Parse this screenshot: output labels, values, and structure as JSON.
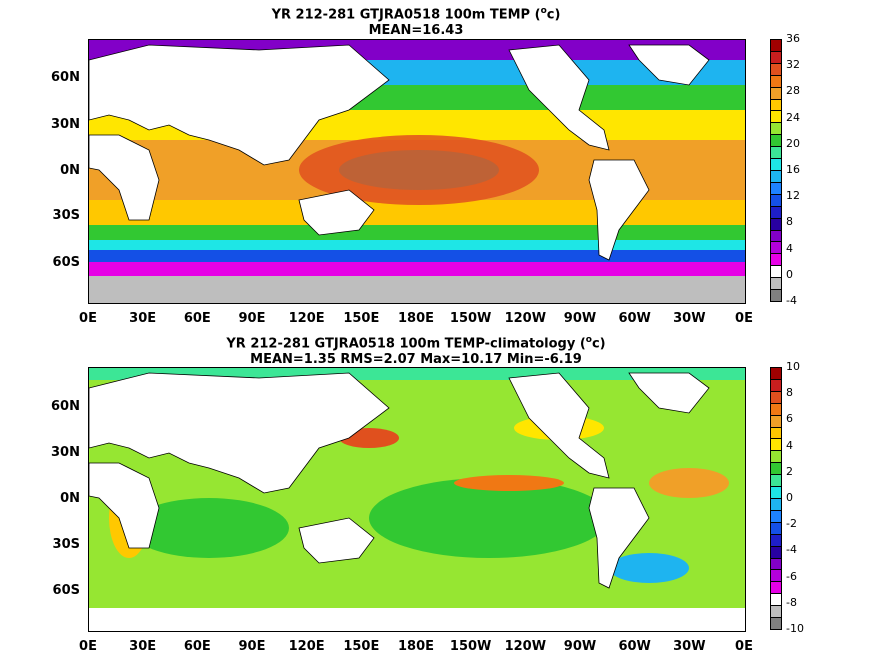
{
  "panels": [
    {
      "title_line1": "YR 212-281 GTJRA0518 100m TEMP (",
      "title_unit": "o",
      "title_line1_end": "c)",
      "title_line2": "MEAN=16.43",
      "colorbar_labels": [
        "36",
        "32",
        "28",
        "24",
        "20",
        "16",
        "12",
        "8",
        "4",
        "0",
        "-4"
      ],
      "colorbar_colors": [
        "#a00000",
        "#c81e1e",
        "#e0501e",
        "#f07814",
        "#f0a028",
        "#ffc800",
        "#ffe600",
        "#96e632",
        "#32c832",
        "#3ce696",
        "#1ee6e6",
        "#1eb4f0",
        "#1e82ff",
        "#1450e6",
        "#1e1ec8",
        "#2800a0",
        "#8200c8",
        "#b400dc",
        "#e600e6",
        "#ffffff",
        "#bebebe",
        "#808080"
      ]
    },
    {
      "title_line1": "YR 212-281 GTJRA0518 100m TEMP-climatology (",
      "title_unit": "o",
      "title_line1_end": "c)",
      "title_line2": "MEAN=1.35   RMS=2.07   Max=10.17   Min=-6.19",
      "colorbar_labels": [
        "10",
        "8",
        "6",
        "4",
        "2",
        "0",
        "-2",
        "-4",
        "-6",
        "-8",
        "-10"
      ],
      "colorbar_colors": [
        "#a00000",
        "#c81e1e",
        "#e0501e",
        "#f07814",
        "#f0a028",
        "#ffc800",
        "#ffe600",
        "#96e632",
        "#32c832",
        "#3ce696",
        "#1ee6e6",
        "#1eb4f0",
        "#1e82ff",
        "#1450e6",
        "#1e1ec8",
        "#2800a0",
        "#8200c8",
        "#b400dc",
        "#e600e6",
        "#ffffff",
        "#bebebe",
        "#808080"
      ]
    }
  ],
  "axes": {
    "lat_labels": [
      "60N",
      "30N",
      "0N",
      "30S",
      "60S"
    ],
    "lon_labels": [
      "0E",
      "30E",
      "60E",
      "90E",
      "120E",
      "150E",
      "180E",
      "150W",
      "120W",
      "90W",
      "60W",
      "30W",
      "0E"
    ]
  }
}
